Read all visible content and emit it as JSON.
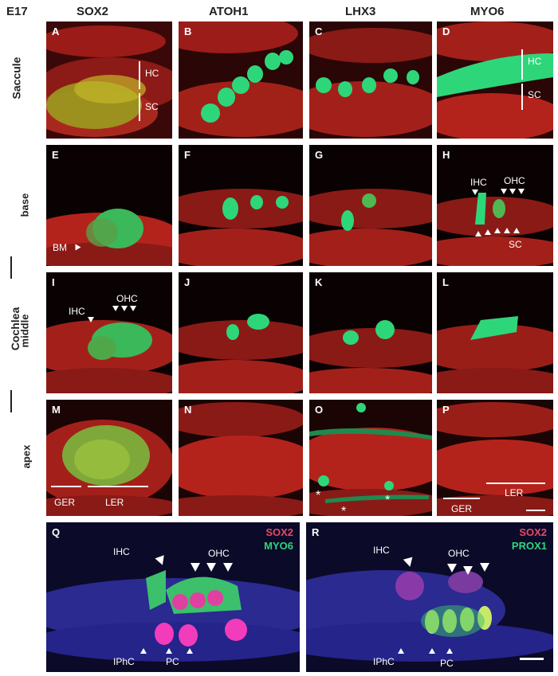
{
  "figure": {
    "stage": "E17",
    "columns": [
      "SOX2",
      "ATOH1",
      "LHX3",
      "MYO6"
    ],
    "row_labels": {
      "saccule": "Saccule",
      "cochlea": "Cochlea",
      "base": "base",
      "middle": "middle",
      "apex": "apex"
    },
    "panels": {
      "A": "A",
      "B": "B",
      "C": "C",
      "D": "D",
      "E": "E",
      "F": "F",
      "G": "G",
      "H": "H",
      "I": "I",
      "J": "J",
      "K": "K",
      "L": "L",
      "M": "M",
      "N": "N",
      "O": "O",
      "P": "P",
      "Q": "Q",
      "R": "R"
    },
    "annotations": {
      "hc": "HC",
      "sc": "SC",
      "bm": "BM",
      "ihc": "IHC",
      "ohc": "OHC",
      "ger": "GER",
      "ler": "LER",
      "iphc": "IPhC",
      "pc": "PC",
      "star": "*"
    },
    "legend_q": {
      "line1": "SOX2",
      "line2": "MYO6"
    },
    "legend_r": {
      "line1": "SOX2",
      "line2": "PROX1"
    },
    "colors": {
      "red_stain": "#e0282b",
      "green_stain": "#2ee07a",
      "blue_stain": "#3a3ab0",
      "magenta_stain": "#f03cae"
    }
  }
}
